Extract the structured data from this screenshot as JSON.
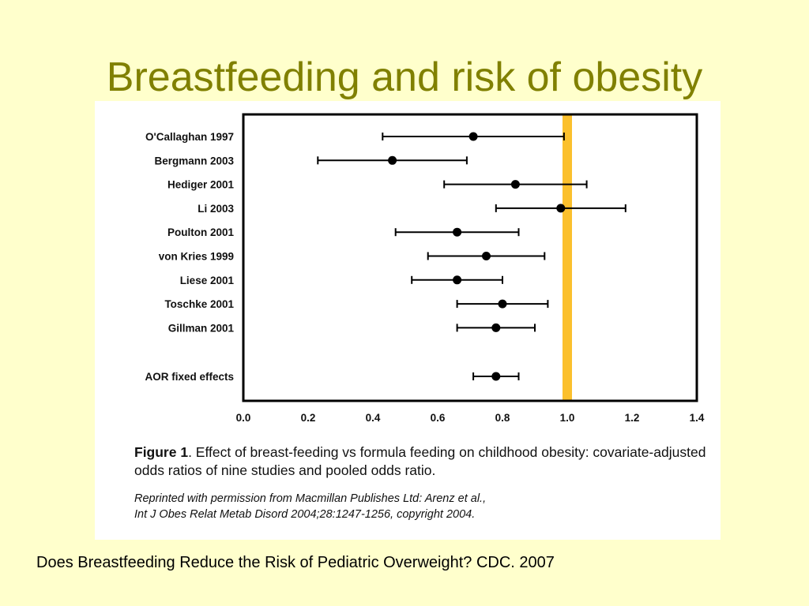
{
  "slide": {
    "title": "Breastfeeding and risk of obesity",
    "source": "Does Breastfeeding Reduce the Risk of Pediatric Overweight?  CDC. 2007"
  },
  "figure": {
    "caption_label": "Figure 1",
    "caption_text": ". Effect of breast-feeding vs formula feeding on childhood obesity: covariate-adjusted odds ratios of nine studies and pooled odds ratio.",
    "reprint_line1": "Reprinted with permission from Macmillan Publishes Ltd: Arenz et al.,",
    "reprint_line2": "Int J Obes Relat Metab Disord 2004;28:1247-1256, copyright 2004."
  },
  "colors": {
    "background": "#FFFFCC",
    "title": "#808000",
    "reference_line": "#FBC02D",
    "marks": "#000000"
  },
  "chart_data": {
    "type": "scatter",
    "subtype": "forest-plot",
    "xlim": [
      0.0,
      1.4
    ],
    "x_ticks": [
      "0.0",
      "0.2",
      "0.4",
      "0.6",
      "0.8",
      "1.0",
      "1.2",
      "1.4"
    ],
    "reference_value": 1.0,
    "grid": false,
    "studies": [
      {
        "label": "O'Callaghan 1997",
        "or": 0.71,
        "lo": 0.43,
        "hi": 0.99
      },
      {
        "label": "Bergmann 2003",
        "or": 0.46,
        "lo": 0.23,
        "hi": 0.69
      },
      {
        "label": "Hediger 2001",
        "or": 0.84,
        "lo": 0.62,
        "hi": 1.06
      },
      {
        "label": "Li 2003",
        "or": 0.98,
        "lo": 0.78,
        "hi": 1.18
      },
      {
        "label": "Poulton 2001",
        "or": 0.66,
        "lo": 0.47,
        "hi": 0.85
      },
      {
        "label": "von Kries 1999",
        "or": 0.75,
        "lo": 0.57,
        "hi": 0.93
      },
      {
        "label": "Liese 2001",
        "or": 0.66,
        "lo": 0.52,
        "hi": 0.8
      },
      {
        "label": "Toschke 2001",
        "or": 0.8,
        "lo": 0.66,
        "hi": 0.94
      },
      {
        "label": "Gillman 2001",
        "or": 0.78,
        "lo": 0.66,
        "hi": 0.9
      }
    ],
    "pooled": {
      "label": "AOR fixed effects",
      "or": 0.78,
      "lo": 0.71,
      "hi": 0.85
    }
  }
}
